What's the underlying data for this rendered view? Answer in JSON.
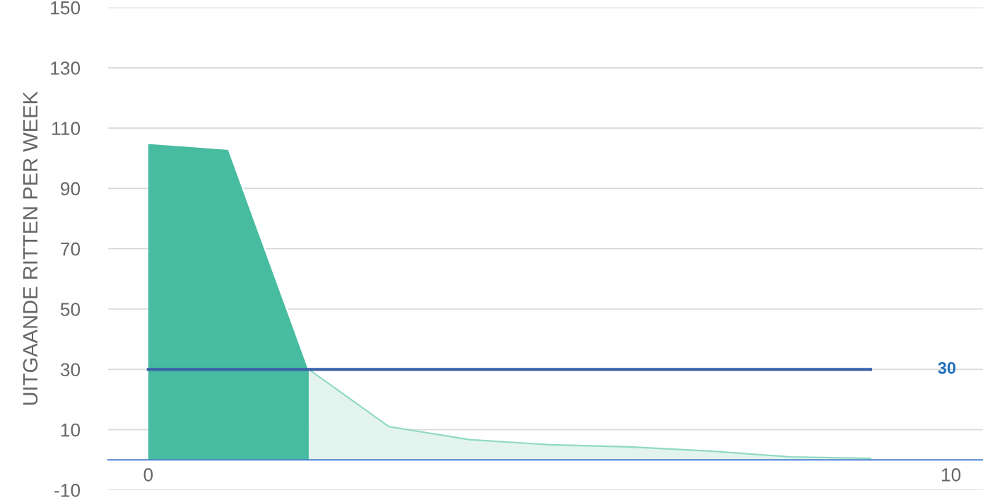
{
  "chart_data": {
    "type": "area",
    "ylabel": "UITGAANDE RITTEN PER WEEK",
    "series": [
      {
        "x": [
          0,
          1,
          2
        ],
        "values": [
          105,
          103,
          30
        ],
        "color": "#48bca1"
      },
      {
        "x": [
          2,
          3,
          4,
          5,
          6,
          7,
          8,
          9
        ],
        "values": [
          30,
          11,
          6.7,
          5,
          4.3,
          2.9,
          1,
          0.5
        ],
        "color": "#e3f4ef"
      }
    ],
    "xlim": [
      -0.5,
      10.4
    ],
    "xticks": [
      0,
      10
    ],
    "ylim": [
      -10,
      150
    ],
    "yticks": [
      -10,
      10,
      30,
      50,
      70,
      90,
      110,
      130,
      150
    ],
    "grid": "y",
    "ref_lines": [
      {
        "axis": "y",
        "value": 30,
        "label": "30",
        "color": "#3a62a8"
      }
    ]
  }
}
